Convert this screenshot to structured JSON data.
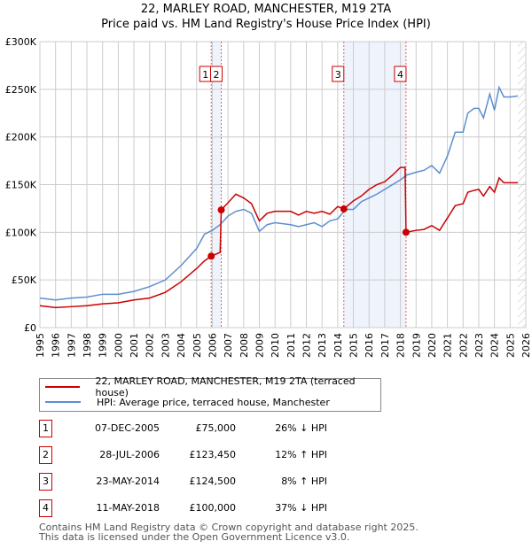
{
  "title": "22, MARLEY ROAD, MANCHESTER, M19 2TA",
  "subtitle": "Price paid vs. HM Land Registry's House Price Index (HPI)",
  "chart_data": {
    "type": "line",
    "title": "22, MARLEY ROAD, MANCHESTER, M19 2TA",
    "subtitle": "Price paid vs. HM Land Registry's House Price Index (HPI)",
    "xlim": [
      1995,
      2026
    ],
    "ylim": [
      0,
      300000
    ],
    "x_ticks": [
      "1995",
      "1996",
      "1997",
      "1998",
      "1999",
      "2000",
      "2001",
      "2002",
      "2003",
      "2004",
      "2005",
      "2006",
      "2007",
      "2008",
      "2009",
      "2010",
      "2011",
      "2012",
      "2013",
      "2014",
      "2015",
      "2016",
      "2017",
      "2018",
      "2019",
      "2020",
      "2021",
      "2022",
      "2023",
      "2024",
      "2025",
      "2026"
    ],
    "y_ticks": [
      {
        "v": 0,
        "label": "£0"
      },
      {
        "v": 50000,
        "label": "£50K"
      },
      {
        "v": 100000,
        "label": "£100K"
      },
      {
        "v": 150000,
        "label": "£150K"
      },
      {
        "v": 200000,
        "label": "£200K"
      },
      {
        "v": 250000,
        "label": "£250K"
      },
      {
        "v": 300000,
        "label": "£300K"
      }
    ],
    "grid": true,
    "shaded_ranges": [
      [
        2005.93,
        2006.57
      ],
      [
        2014.39,
        2018.36
      ]
    ],
    "forecast_hatch_from": 2025.5,
    "series": [
      {
        "name": "22, MARLEY ROAD, MANCHESTER, M19 2TA (terraced house)",
        "color": "#cc0000",
        "x": [
          1995,
          1996,
          1997,
          1998,
          1999,
          2000,
          2001,
          2002,
          2003,
          2004,
          2005,
          2005.5,
          2005.93,
          2006.5,
          2006.57,
          2007,
          2007.5,
          2008,
          2008.5,
          2009,
          2009.5,
          2010,
          2011,
          2011.5,
          2012,
          2012.5,
          2013,
          2013.5,
          2014,
          2014.39,
          2015,
          2015.5,
          2016,
          2016.5,
          2017,
          2017.5,
          2018,
          2018.3,
          2018.36,
          2019,
          2019.5,
          2020,
          2020.5,
          2021,
          2021.5,
          2022,
          2022.3,
          2022.7,
          2023,
          2023.3,
          2023.7,
          2024,
          2024.3,
          2024.6,
          2025,
          2025.5
        ],
        "values": [
          23000,
          21000,
          22000,
          23000,
          25000,
          26000,
          29000,
          31000,
          37000,
          48000,
          62000,
          70000,
          75000,
          79000,
          123450,
          131000,
          140000,
          136000,
          130000,
          112000,
          120000,
          122000,
          122000,
          118000,
          122000,
          120000,
          122000,
          119000,
          127000,
          124500,
          133000,
          138000,
          145000,
          150000,
          153000,
          160000,
          168000,
          168000,
          100000,
          102000,
          103000,
          107000,
          102000,
          115000,
          128000,
          130000,
          142000,
          144000,
          145000,
          138000,
          148000,
          142000,
          157000,
          152000,
          152000,
          152000
        ]
      },
      {
        "name": "HPI: Average price, terraced house, Manchester",
        "color": "#5b8fd0",
        "x": [
          1995,
          1996,
          1997,
          1998,
          1999,
          2000,
          2001,
          2002,
          2003,
          2004,
          2005,
          2005.5,
          2006,
          2006.5,
          2007,
          2007.5,
          2008,
          2008.5,
          2009,
          2009.5,
          2010,
          2011,
          2011.5,
          2012,
          2012.5,
          2013,
          2013.5,
          2014,
          2014.5,
          2015,
          2015.5,
          2016,
          2016.5,
          2017,
          2017.5,
          2018,
          2018.4,
          2019,
          2019.5,
          2020,
          2020.5,
          2021,
          2021.5,
          2022,
          2022.3,
          2022.7,
          2023,
          2023.3,
          2023.7,
          2024,
          2024.3,
          2024.6,
          2025,
          2025.5
        ],
        "values": [
          31000,
          29000,
          31000,
          32000,
          35000,
          35000,
          38000,
          43000,
          50000,
          65000,
          83000,
          98000,
          102000,
          108000,
          117000,
          122000,
          124000,
          120000,
          101000,
          108000,
          110000,
          108000,
          106000,
          108000,
          110000,
          106000,
          112000,
          114000,
          124000,
          124000,
          132000,
          136000,
          140000,
          145000,
          150000,
          155000,
          160000,
          163000,
          165000,
          170000,
          162000,
          180000,
          205000,
          205000,
          225000,
          230000,
          230000,
          220000,
          245000,
          228000,
          252000,
          242000,
          242000,
          243000
        ]
      }
    ],
    "sales": [
      {
        "n": "1",
        "x": 2005.93,
        "value": 75000
      },
      {
        "n": "2",
        "x": 2006.57,
        "value": 123450
      },
      {
        "n": "3",
        "x": 2014.39,
        "value": 124500
      },
      {
        "n": "4",
        "x": 2018.36,
        "value": 100000
      }
    ]
  },
  "legend": {
    "property": "22, MARLEY ROAD, MANCHESTER, M19 2TA (terraced house)",
    "hpi": "HPI: Average price, terraced house, Manchester"
  },
  "transactions": [
    {
      "n": "1",
      "date": "07-DEC-2005",
      "price": "£75,000",
      "hpi": "26% ↓ HPI"
    },
    {
      "n": "2",
      "date": "28-JUL-2006",
      "price": "£123,450",
      "hpi": "12% ↑ HPI"
    },
    {
      "n": "3",
      "date": "23-MAY-2014",
      "price": "£124,500",
      "hpi": "8% ↑ HPI"
    },
    {
      "n": "4",
      "date": "11-MAY-2018",
      "price": "£100,000",
      "hpi": "37% ↓ HPI"
    }
  ],
  "footer": {
    "line1": "Contains HM Land Registry data © Crown copyright and database right 2025.",
    "line2": "This data is licensed under the Open Government Licence v3.0."
  }
}
